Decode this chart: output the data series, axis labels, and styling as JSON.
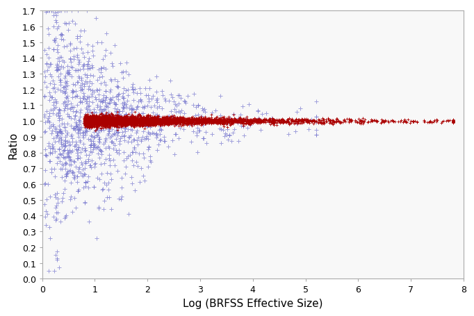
{
  "title": "",
  "xlabel": "Log (BRFSS Effective Size)",
  "ylabel": "Ratio",
  "xlim": [
    0,
    8
  ],
  "ylim": [
    0.0,
    1.7
  ],
  "xticks": [
    0,
    1,
    2,
    3,
    4,
    5,
    6,
    7,
    8
  ],
  "yticks": [
    0.0,
    0.1,
    0.2,
    0.3,
    0.4,
    0.5,
    0.6,
    0.7,
    0.8,
    0.9,
    1.0,
    1.1,
    1.2,
    1.3,
    1.4,
    1.5,
    1.6,
    1.7
  ],
  "blue_color": "#7070CC",
  "red_color": "#AA0000",
  "marker": "+",
  "blue_markersize": 4,
  "red_markersize": 3,
  "n_blue": 1200,
  "n_red": 4000,
  "seed": 77,
  "bg_color": "#F8F8F8",
  "spine_color": "#AAAAAA",
  "tick_label_size": 9,
  "axis_label_size": 11
}
